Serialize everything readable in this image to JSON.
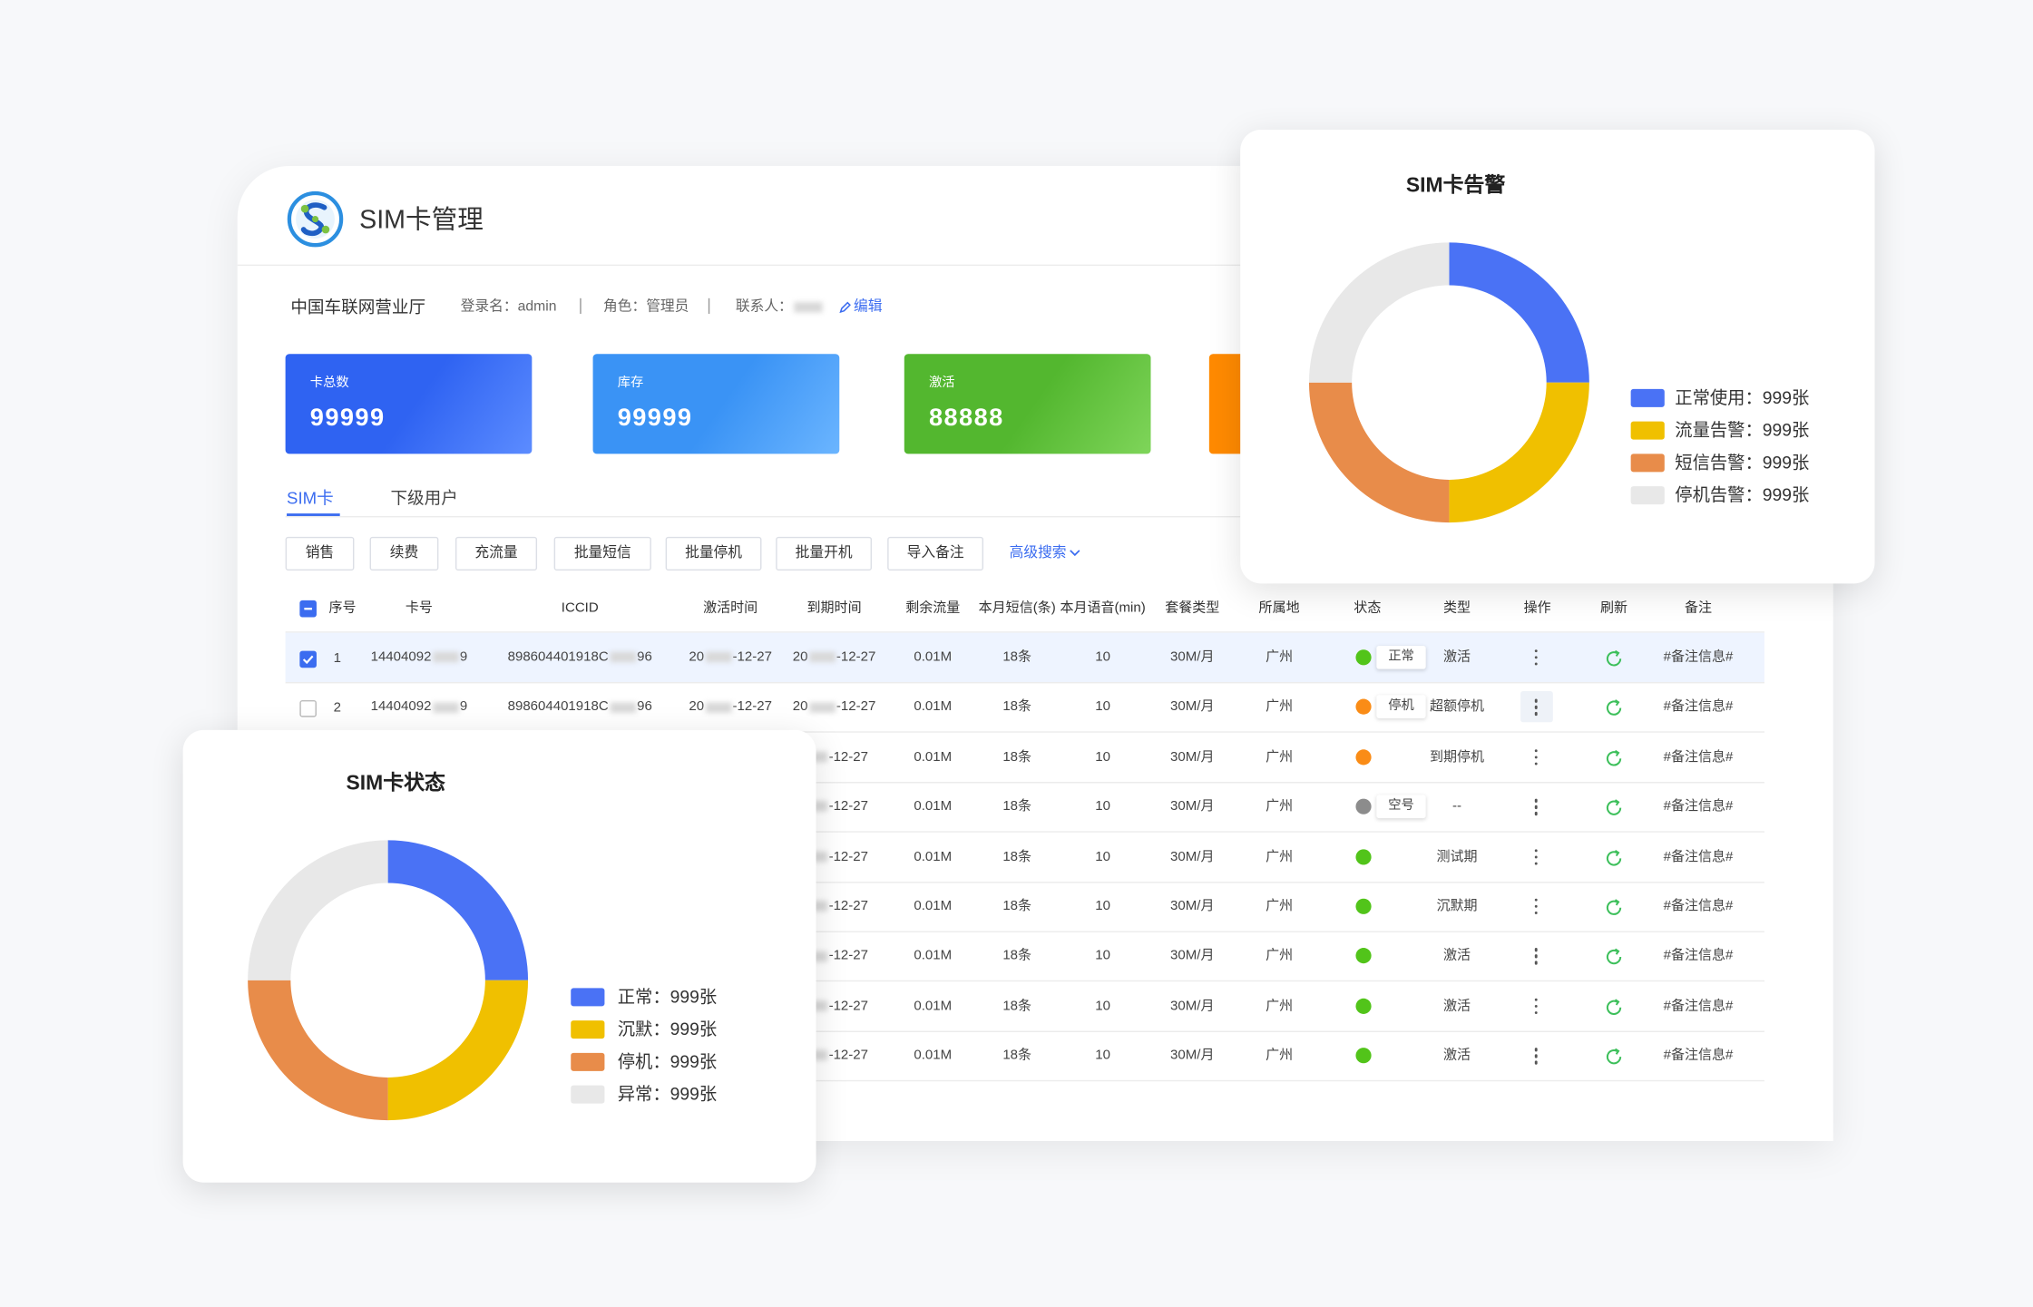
{
  "header": {
    "title": "SIM卡管理"
  },
  "info": {
    "org": "中国车联网营业厅",
    "login": "登录名：admin",
    "role": "角色：管理员",
    "contact": "联系人：",
    "edit": "编辑"
  },
  "stats": [
    {
      "label": "卡总数",
      "value": "99999"
    },
    {
      "label": "库存",
      "value": "99999"
    },
    {
      "label": "激活",
      "value": "88888"
    }
  ],
  "tabs": [
    "SIM卡",
    "下级用户"
  ],
  "buttons": [
    "销售",
    "续费",
    "充流量",
    "批量短信",
    "批量停机",
    "批量开机",
    "导入备注"
  ],
  "advanced_search": "高级搜索",
  "table": {
    "columns": [
      "序号",
      "卡号",
      "ICCID",
      "激活时间",
      "到期时间",
      "剩余流量",
      "本月短信(条)",
      "本月语音(min)",
      "套餐类型",
      "所属地",
      "状态",
      "类型",
      "操作",
      "刷新",
      "备注"
    ],
    "rows": [
      {
        "seq": "1",
        "card": [
          "14404092",
          "9"
        ],
        "iccid": [
          "898604401918C",
          "96"
        ],
        "activated": [
          "20",
          "-12-27"
        ],
        "expires": [
          "20",
          "-12-27"
        ],
        "flow": "0.01M",
        "sms": "18条",
        "voice": "10",
        "plan": "30M/月",
        "area": "广州",
        "status": "正常",
        "status_color": "#52c41a",
        "type": "激活",
        "remark": "#备注信息#"
      },
      {
        "seq": "2",
        "card": [
          "14404092",
          "9"
        ],
        "iccid": [
          "898604401918C",
          "96"
        ],
        "activated": [
          "20",
          "-12-27"
        ],
        "expires": [
          "20",
          "-12-27"
        ],
        "flow": "0.01M",
        "sms": "18条",
        "voice": "10",
        "plan": "30M/月",
        "area": "广州",
        "status": "停机",
        "status_color": "#fa8c16",
        "type": "超额停机",
        "remark": "#备注信息#"
      },
      {
        "expires": [
          "",
          "-12-27"
        ],
        "flow": "0.01M",
        "sms": "18条",
        "voice": "10",
        "plan": "30M/月",
        "area": "广州",
        "status_color": "#fa8c16",
        "type": "到期停机",
        "remark": "#备注信息#"
      },
      {
        "expires": [
          "",
          "-12-27"
        ],
        "flow": "0.01M",
        "sms": "18条",
        "voice": "10",
        "plan": "30M/月",
        "area": "广州",
        "status": "空号",
        "status_color": "#8c8c8c",
        "type": "--",
        "remark": "#备注信息#"
      },
      {
        "expires": [
          "",
          "-12-27"
        ],
        "flow": "0.01M",
        "sms": "18条",
        "voice": "10",
        "plan": "30M/月",
        "area": "广州",
        "status_color": "#52c41a",
        "type": "测试期",
        "remark": "#备注信息#"
      },
      {
        "expires": [
          "",
          "-12-27"
        ],
        "flow": "0.01M",
        "sms": "18条",
        "voice": "10",
        "plan": "30M/月",
        "area": "广州",
        "status_color": "#52c41a",
        "type": "沉默期",
        "remark": "#备注信息#"
      },
      {
        "expires": [
          "",
          "-12-27"
        ],
        "flow": "0.01M",
        "sms": "18条",
        "voice": "10",
        "plan": "30M/月",
        "area": "广州",
        "status_color": "#52c41a",
        "type": "激活",
        "remark": "#备注信息#"
      },
      {
        "expires": [
          "",
          "-12-27"
        ],
        "flow": "0.01M",
        "sms": "18条",
        "voice": "10",
        "plan": "30M/月",
        "area": "广州",
        "status_color": "#52c41a",
        "type": "激活",
        "remark": "#备注信息#"
      },
      {
        "expires": [
          "",
          "-12-27"
        ],
        "flow": "0.01M",
        "sms": "18条",
        "voice": "10",
        "plan": "30M/月",
        "area": "广州",
        "status_color": "#52c41a",
        "type": "激活",
        "remark": "#备注信息#"
      }
    ]
  },
  "chart_data": [
    {
      "type": "pie",
      "title": "SIM卡告警",
      "values": [
        999,
        999,
        999,
        999
      ],
      "value_labels": [
        "正常使用：999张",
        "流量告警：999张",
        "短信告警：999张",
        "停机告警：999张"
      ],
      "colors": [
        "#4a72f5",
        "#f0c000",
        "#e88c4a",
        "#e8e8e8"
      ]
    },
    {
      "type": "pie",
      "title": "SIM卡状态",
      "values": [
        999,
        999,
        999,
        999
      ],
      "value_labels": [
        "正常：999张",
        "沉默：999张",
        "停机：999张",
        "异常：999张"
      ],
      "colors": [
        "#4a72f5",
        "#f0c000",
        "#e88c4a",
        "#e8e8e8"
      ]
    }
  ]
}
